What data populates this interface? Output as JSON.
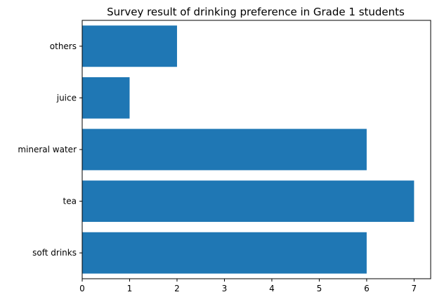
{
  "chart_data": {
    "type": "bar",
    "orientation": "horizontal",
    "title": "Survey result of drinking preference in Grade 1 students",
    "xlabel": "",
    "ylabel": "",
    "categories": [
      "soft drinks",
      "tea",
      "mineral water",
      "juice",
      "others"
    ],
    "values": [
      6,
      7,
      6,
      1,
      2
    ],
    "xlim": [
      0,
      7.35
    ],
    "xticks": [
      0,
      1,
      2,
      3,
      4,
      5,
      6,
      7
    ],
    "grid": false,
    "bar_color": "#1f77b4"
  }
}
